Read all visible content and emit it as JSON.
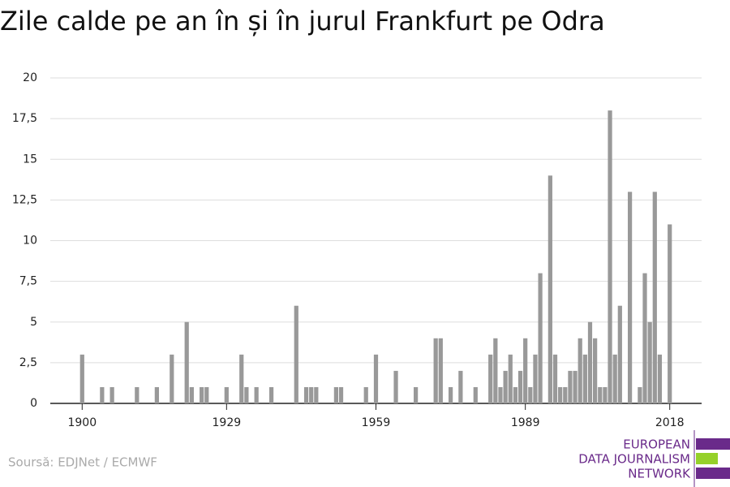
{
  "chart_data": {
    "type": "bar",
    "title": "Zile calde pe an în și în jurul Frankfurt pe Odra",
    "source": "Soursă: EDJNet / ECMWF",
    "logo": [
      "EUROPEAN",
      "DATA JOURNALISM",
      "NETWORK"
    ],
    "color": "#999999",
    "x": [
      1900,
      1904,
      1906,
      1911,
      1915,
      1918,
      1921,
      1922,
      1924,
      1925,
      1929,
      1932,
      1933,
      1935,
      1938,
      1943,
      1945,
      1946,
      1947,
      1951,
      1952,
      1957,
      1959,
      1963,
      1967,
      1971,
      1972,
      1974,
      1976,
      1979,
      1982,
      1983,
      1984,
      1985,
      1986,
      1987,
      1988,
      1989,
      1990,
      1991,
      1992,
      1994,
      1995,
      1996,
      1997,
      1998,
      1999,
      2000,
      2001,
      2002,
      2003,
      2004,
      2005,
      2006,
      2007,
      2008,
      2010,
      2012,
      2013,
      2014,
      2015,
      2016,
      2018
    ],
    "values": [
      3,
      1,
      1,
      1,
      1,
      3,
      5,
      1,
      1,
      1,
      1,
      3,
      1,
      1,
      1,
      6,
      1,
      1,
      1,
      1,
      1,
      1,
      3,
      2,
      1,
      4,
      4,
      1,
      2,
      1,
      3,
      4,
      1,
      2,
      3,
      1,
      2,
      4,
      1,
      3,
      8,
      14,
      3,
      1,
      1,
      2,
      2,
      4,
      3,
      5,
      4,
      1,
      1,
      18,
      3,
      6,
      13,
      1,
      8,
      5,
      13,
      3,
      11
    ],
    "xlim": [
      1893.6,
      2024.4
    ],
    "xticks": [
      1900,
      1929,
      1959,
      1989,
      2018
    ],
    "ylim": [
      0,
      20
    ],
    "yticks": [
      0,
      {
        "value": 2.5,
        "label": "2,5"
      },
      5,
      {
        "value": 7.5,
        "label": "7,5"
      },
      10,
      {
        "value": 12.5,
        "label": "12,5"
      },
      15,
      {
        "value": 17.5,
        "label": "17,5"
      },
      20
    ],
    "grid": true
  }
}
